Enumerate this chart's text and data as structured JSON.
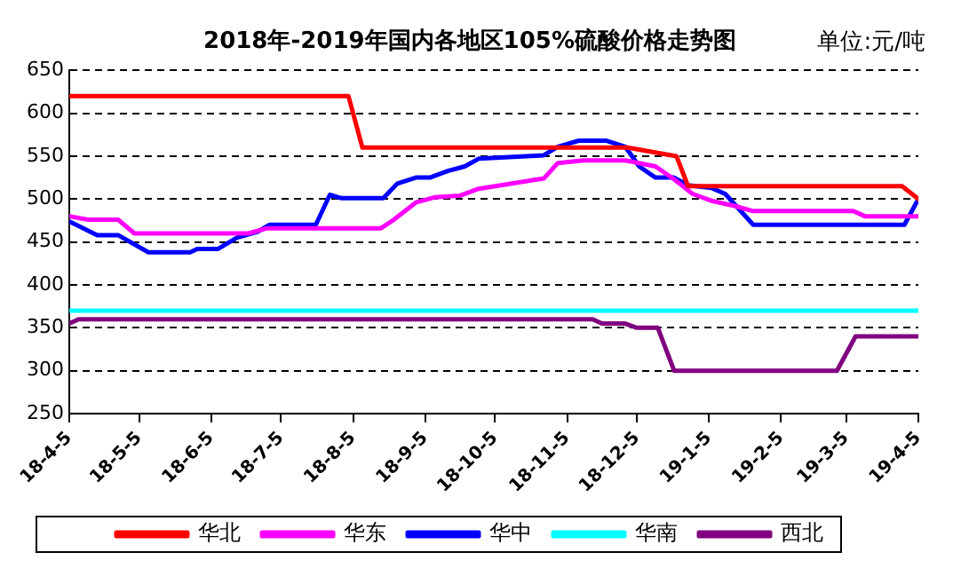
{
  "chart_data": {
    "type": "line",
    "title": "2018年-2019年国内各地区105%硫酸价格走势图",
    "annotations": [
      "单位:元/吨"
    ],
    "xlim": [
      "2018-04-05",
      "2019-04-05"
    ],
    "xticks": [
      {
        "value": "2018-04-05",
        "label": "18-4-5"
      },
      {
        "value": "2018-05-05",
        "label": "18-5-5"
      },
      {
        "value": "2018-06-05",
        "label": "18-6-5"
      },
      {
        "value": "2018-07-05",
        "label": "18-7-5"
      },
      {
        "value": "2018-08-05",
        "label": "18-8-5"
      },
      {
        "value": "2018-09-05",
        "label": "18-9-5"
      },
      {
        "value": "2018-10-05",
        "label": "18-10-5"
      },
      {
        "value": "2018-11-05",
        "label": "18-11-5"
      },
      {
        "value": "2018-12-05",
        "label": "18-12-5"
      },
      {
        "value": "2019-01-05",
        "label": "19-1-5"
      },
      {
        "value": "2019-02-05",
        "label": "19-2-5"
      },
      {
        "value": "2019-03-05",
        "label": "19-3-5"
      },
      {
        "value": "2019-04-05",
        "label": "19-4-5"
      }
    ],
    "ylim": [
      250,
      650
    ],
    "yticks": [
      250,
      300,
      350,
      400,
      450,
      500,
      550,
      600,
      650
    ],
    "grid": "y",
    "legend": "bottom",
    "marker": "none",
    "line_style": "solid",
    "series": [
      {
        "name": "华北",
        "color": "#ff0000",
        "x": [
          "2018-04-05",
          "2018-08-03",
          "2018-08-09",
          "2018-12-01",
          "2018-12-22",
          "2018-12-27",
          "2019-03-29",
          "2019-04-05"
        ],
        "values": [
          620,
          620,
          560,
          560,
          550,
          515,
          515,
          500
        ]
      },
      {
        "name": "华东",
        "color": "#ff00ff",
        "x": [
          "2018-04-05",
          "2018-04-13",
          "2018-04-26",
          "2018-05-03",
          "2018-06-21",
          "2018-06-29",
          "2018-08-17",
          "2018-08-22",
          "2018-09-01",
          "2018-09-09",
          "2018-09-20",
          "2018-09-28",
          "2018-10-26",
          "2018-11-01",
          "2018-11-12",
          "2018-11-30",
          "2018-12-13",
          "2018-12-21",
          "2018-12-29",
          "2019-01-06",
          "2019-01-16",
          "2019-01-24",
          "2019-03-08",
          "2019-03-13",
          "2019-04-05"
        ],
        "values": [
          480,
          476,
          476,
          460,
          460,
          466,
          466,
          475,
          496,
          502,
          504,
          512,
          524,
          542,
          545,
          545,
          538,
          523,
          506,
          498,
          492,
          486,
          486,
          480,
          480
        ]
      },
      {
        "name": "华中",
        "color": "#0000ff",
        "x": [
          "2018-04-05",
          "2018-04-17",
          "2018-04-26",
          "2018-05-09",
          "2018-05-27",
          "2018-05-30",
          "2018-06-08",
          "2018-06-16",
          "2018-06-25",
          "2018-06-30",
          "2018-07-20",
          "2018-07-26",
          "2018-07-31",
          "2018-08-18",
          "2018-08-24",
          "2018-09-01",
          "2018-09-07",
          "2018-09-15",
          "2018-09-22",
          "2018-09-28",
          "2018-10-26",
          "2018-11-01",
          "2018-11-10",
          "2018-11-22",
          "2018-11-30",
          "2018-12-06",
          "2018-12-13",
          "2018-12-21",
          "2018-12-27",
          "2019-01-06",
          "2019-01-12",
          "2019-01-24",
          "2019-03-30",
          "2019-04-05"
        ],
        "values": [
          474,
          458,
          458,
          438,
          438,
          442,
          442,
          455,
          462,
          470,
          470,
          505,
          501,
          501,
          518,
          525,
          525,
          533,
          538,
          547,
          551,
          561,
          568,
          568,
          561,
          538,
          525,
          525,
          516,
          513,
          506,
          470,
          470,
          500
        ]
      },
      {
        "name": "华南",
        "color": "#00ffff",
        "x": [
          "2018-04-05",
          "2019-04-05"
        ],
        "values": [
          370,
          370
        ]
      },
      {
        "name": "西北",
        "color": "#800080",
        "x": [
          "2018-04-05",
          "2018-04-09",
          "2018-11-16",
          "2018-11-20",
          "2018-11-30",
          "2018-12-05",
          "2018-12-14",
          "2018-12-21",
          "2019-03-01",
          "2019-03-09",
          "2019-04-05"
        ],
        "values": [
          355,
          360,
          360,
          355,
          355,
          350,
          350,
          300,
          300,
          340,
          340
        ]
      }
    ]
  }
}
